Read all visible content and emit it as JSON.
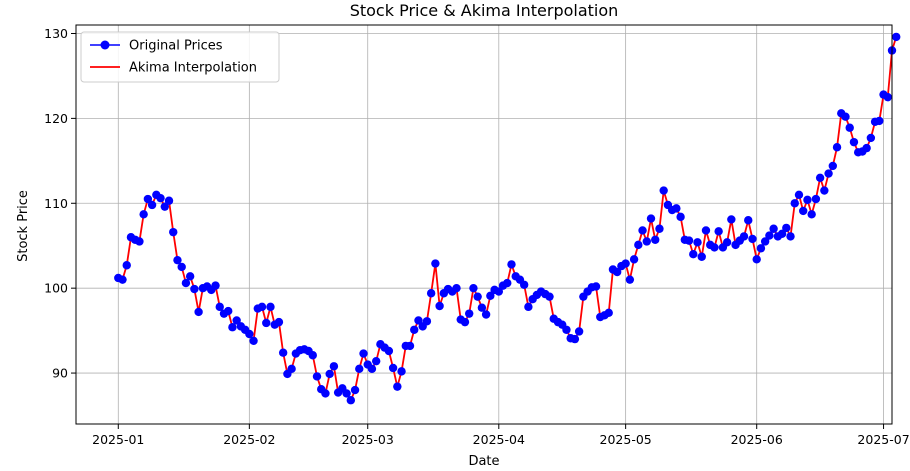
{
  "chart_data": {
    "type": "line",
    "title": "Stock Price & Akima Interpolation",
    "xlabel": "Date",
    "ylabel": "Stock Price",
    "x_start": "2025-01-01",
    "x_ticks": [
      "2025-01",
      "2025-02",
      "2025-03",
      "2025-04",
      "2025-05",
      "2025-06",
      "2025-07"
    ],
    "x_tick_dates": [
      "2025-01-01",
      "2025-02-01",
      "2025-03-01",
      "2025-04-01",
      "2025-05-01",
      "2025-06-01",
      "2025-07-01"
    ],
    "xlim": [
      "2024-12-22",
      "2025-07-03"
    ],
    "y_ticks": [
      90,
      100,
      110,
      120,
      130
    ],
    "ylim": [
      84,
      131
    ],
    "grid": true,
    "legend_position": "top-left",
    "colors": {
      "markers": "#0000ff",
      "interpolation": "#ff0000",
      "grid": "#b0b0b0"
    },
    "series": [
      {
        "name": "Original Prices",
        "style": "markers",
        "values": [
          101.2,
          101.0,
          102.7,
          106.0,
          105.7,
          105.5,
          108.7,
          110.5,
          109.8,
          111.0,
          110.6,
          109.6,
          110.3,
          106.6,
          103.3,
          102.5,
          100.6,
          101.4,
          99.9,
          97.2,
          100.0,
          100.2,
          99.8,
          100.3,
          97.8,
          97.0,
          97.3,
          95.4,
          96.2,
          95.5,
          95.1,
          94.6,
          93.8,
          97.6,
          97.8,
          95.9,
          97.8,
          95.7,
          96.0,
          92.4,
          89.9,
          90.5,
          92.3,
          92.7,
          92.8,
          92.6,
          92.1,
          89.6,
          88.1,
          87.6,
          89.9,
          90.8,
          87.7,
          88.2,
          87.6,
          86.8,
          88.0,
          90.5,
          92.3,
          91.0,
          90.5,
          91.4,
          93.4,
          93.0,
          92.6,
          90.6,
          88.4,
          90.2,
          93.2,
          93.2,
          95.1,
          96.2,
          95.5,
          96.1,
          99.4,
          102.9,
          97.9,
          99.4,
          99.9,
          99.6,
          100.0,
          96.3,
          96.0,
          97.0,
          100.0,
          99.0,
          97.7,
          96.9,
          99.1,
          99.8,
          99.6,
          100.3,
          100.6,
          102.8,
          101.4,
          101.0,
          100.4,
          97.8,
          98.7,
          99.2,
          99.6,
          99.3,
          99.0,
          96.4,
          96.0,
          95.7,
          95.1,
          94.1,
          94.0,
          94.9,
          99.0,
          99.6,
          100.1,
          100.2,
          96.6,
          96.8,
          97.1,
          102.2,
          101.9,
          102.6,
          102.9,
          101.0,
          103.4,
          105.1,
          106.8,
          105.5,
          108.2,
          105.7,
          107.0,
          111.5,
          109.8,
          109.2,
          109.4,
          108.4,
          105.7,
          105.6,
          104.0,
          105.4,
          103.7,
          106.8,
          105.1,
          104.8,
          106.7,
          104.8,
          105.4,
          108.1,
          105.1,
          105.6,
          106.1,
          108.0,
          105.8,
          103.4,
          104.7,
          105.5,
          106.2,
          107.0,
          106.1,
          106.4,
          107.1,
          106.1,
          110.0,
          111.0,
          109.1,
          110.4,
          108.7,
          110.5,
          113.0,
          111.5,
          113.5,
          114.4,
          116.6,
          120.6,
          120.2,
          118.9,
          117.2,
          116.0,
          116.1,
          116.5,
          117.7,
          119.6,
          119.7,
          122.8,
          122.5,
          128.0,
          129.6
        ]
      },
      {
        "name": "Akima Interpolation",
        "style": "line"
      }
    ]
  }
}
